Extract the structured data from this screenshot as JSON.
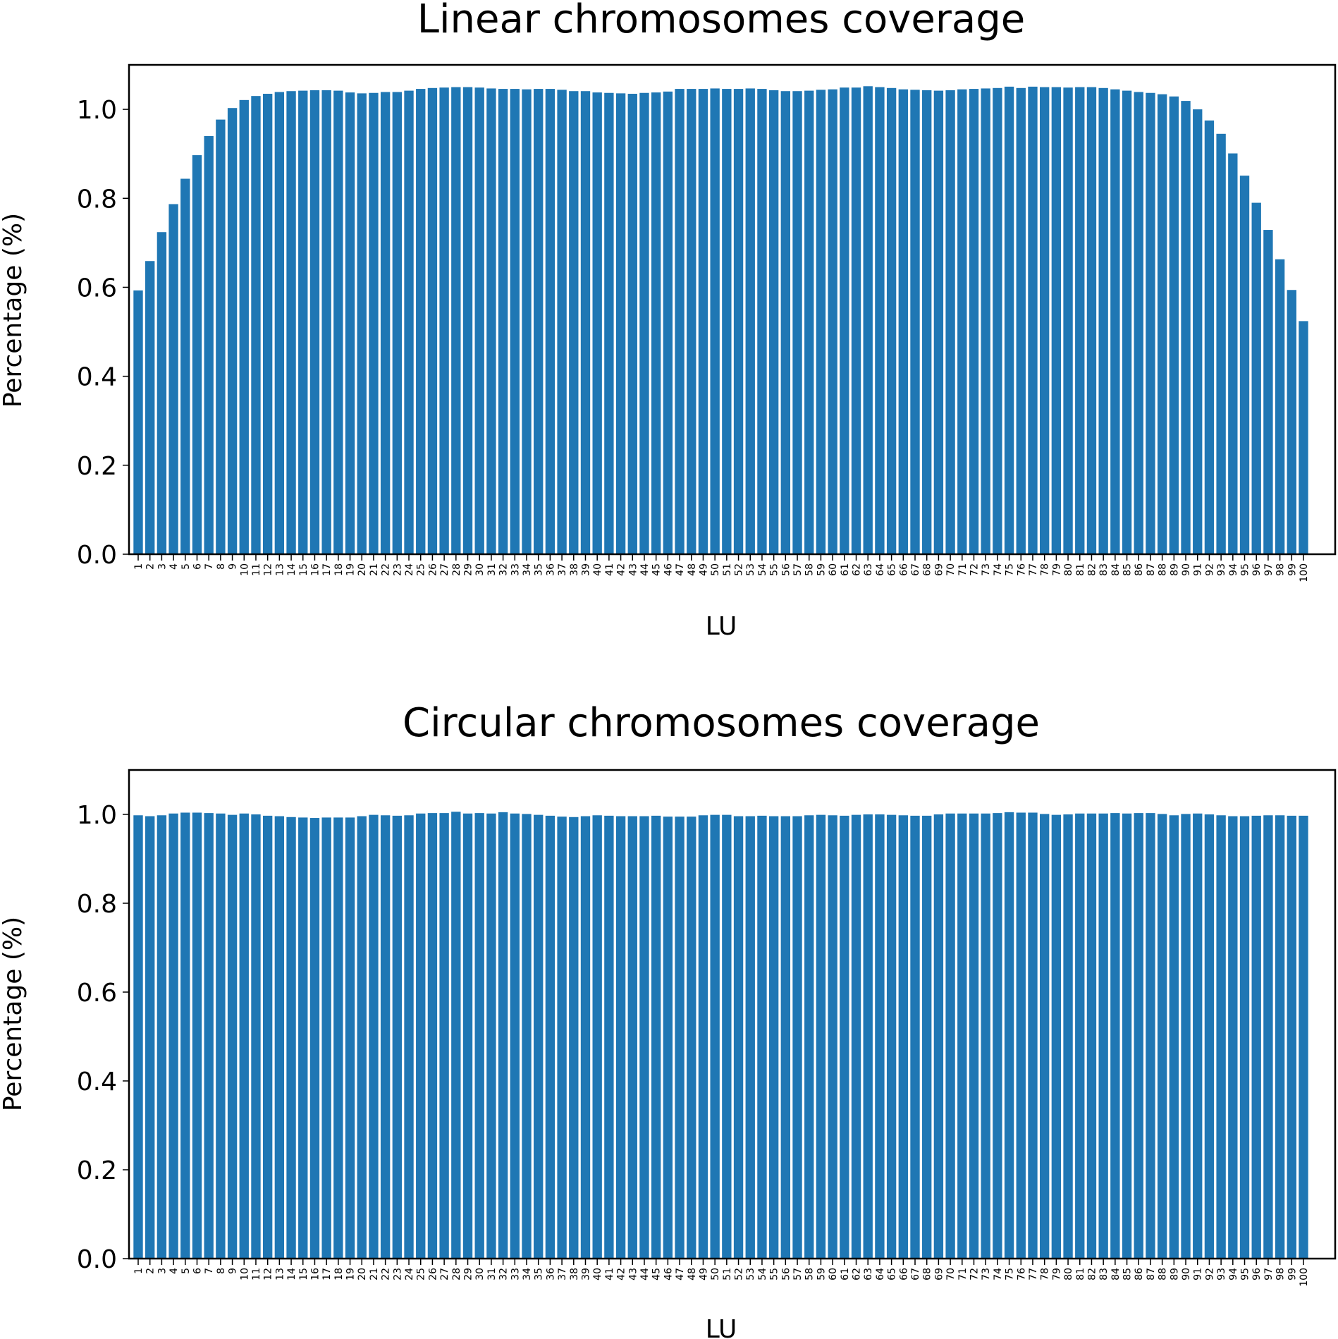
{
  "chart_data": [
    {
      "type": "bar",
      "title": "Linear chromosomes coverage",
      "xlabel": "LU",
      "ylabel": "Percentage (%)",
      "ylim": [
        0,
        1.1
      ],
      "yticks": [
        "0.0",
        "0.2",
        "0.4",
        "0.6",
        "0.8",
        "1.0"
      ],
      "grid": false,
      "bar_color": "#1f77b4",
      "categories": [
        "1",
        "2",
        "3",
        "4",
        "5",
        "6",
        "7",
        "8",
        "9",
        "10",
        "11",
        "12",
        "13",
        "14",
        "15",
        "16",
        "17",
        "18",
        "19",
        "20",
        "21",
        "22",
        "23",
        "24",
        "25",
        "26",
        "27",
        "28",
        "29",
        "30",
        "31",
        "32",
        "33",
        "34",
        "35",
        "36",
        "37",
        "38",
        "39",
        "40",
        "41",
        "42",
        "43",
        "44",
        "45",
        "46",
        "47",
        "48",
        "49",
        "50",
        "51",
        "52",
        "53",
        "54",
        "55",
        "56",
        "57",
        "58",
        "59",
        "60",
        "61",
        "62",
        "63",
        "64",
        "65",
        "66",
        "67",
        "68",
        "69",
        "70",
        "71",
        "72",
        "73",
        "74",
        "75",
        "76",
        "77",
        "78",
        "79",
        "80",
        "81",
        "82",
        "83",
        "84",
        "85",
        "86",
        "87",
        "88",
        "89",
        "90",
        "91",
        "92",
        "93",
        "94",
        "95",
        "96",
        "97",
        "98",
        "99",
        "100"
      ],
      "values": [
        0.593,
        0.659,
        0.724,
        0.787,
        0.844,
        0.897,
        0.94,
        0.977,
        1.003,
        1.021,
        1.03,
        1.035,
        1.039,
        1.041,
        1.042,
        1.043,
        1.043,
        1.042,
        1.038,
        1.036,
        1.037,
        1.039,
        1.039,
        1.042,
        1.046,
        1.048,
        1.049,
        1.05,
        1.05,
        1.049,
        1.047,
        1.046,
        1.046,
        1.045,
        1.046,
        1.046,
        1.044,
        1.041,
        1.041,
        1.038,
        1.037,
        1.036,
        1.035,
        1.037,
        1.038,
        1.04,
        1.046,
        1.046,
        1.046,
        1.047,
        1.046,
        1.046,
        1.047,
        1.046,
        1.043,
        1.041,
        1.041,
        1.042,
        1.044,
        1.045,
        1.049,
        1.049,
        1.052,
        1.05,
        1.048,
        1.045,
        1.044,
        1.043,
        1.042,
        1.043,
        1.045,
        1.046,
        1.047,
        1.048,
        1.051,
        1.048,
        1.051,
        1.05,
        1.05,
        1.049,
        1.05,
        1.05,
        1.048,
        1.045,
        1.042,
        1.039,
        1.037,
        1.034,
        1.029,
        1.019,
        1.0,
        0.975,
        0.945,
        0.901,
        0.851,
        0.79,
        0.729,
        0.663,
        0.594,
        0.524
      ]
    },
    {
      "type": "bar",
      "title": "Circular chromosomes coverage",
      "xlabel": "LU",
      "ylabel": "Percentage (%)",
      "ylim": [
        0,
        1.1
      ],
      "yticks": [
        "0.0",
        "0.2",
        "0.4",
        "0.6",
        "0.8",
        "1.0"
      ],
      "grid": false,
      "bar_color": "#1f77b4",
      "categories": [
        "1",
        "2",
        "3",
        "4",
        "5",
        "6",
        "7",
        "8",
        "9",
        "10",
        "11",
        "12",
        "13",
        "14",
        "15",
        "16",
        "17",
        "18",
        "19",
        "20",
        "21",
        "22",
        "23",
        "24",
        "25",
        "26",
        "27",
        "28",
        "29",
        "30",
        "31",
        "32",
        "33",
        "34",
        "35",
        "36",
        "37",
        "38",
        "39",
        "40",
        "41",
        "42",
        "43",
        "44",
        "45",
        "46",
        "47",
        "48",
        "49",
        "50",
        "51",
        "52",
        "53",
        "54",
        "55",
        "56",
        "57",
        "58",
        "59",
        "60",
        "61",
        "62",
        "63",
        "64",
        "65",
        "66",
        "67",
        "68",
        "69",
        "70",
        "71",
        "72",
        "73",
        "74",
        "75",
        "76",
        "77",
        "78",
        "79",
        "80",
        "81",
        "82",
        "83",
        "84",
        "85",
        "86",
        "87",
        "88",
        "89",
        "90",
        "91",
        "92",
        "93",
        "94",
        "95",
        "96",
        "97",
        "98",
        "99",
        "100"
      ],
      "values": [
        0.998,
        0.996,
        0.998,
        1.002,
        1.004,
        1.004,
        1.003,
        1.002,
        0.999,
        1.002,
        1.0,
        0.997,
        0.996,
        0.994,
        0.993,
        0.992,
        0.993,
        0.993,
        0.993,
        0.996,
        0.999,
        0.998,
        0.997,
        0.998,
        1.002,
        1.003,
        1.003,
        1.006,
        1.002,
        1.003,
        1.002,
        1.005,
        1.002,
        1.001,
        0.999,
        0.997,
        0.995,
        0.994,
        0.996,
        0.998,
        0.997,
        0.996,
        0.996,
        0.996,
        0.997,
        0.995,
        0.995,
        0.995,
        0.998,
        0.999,
        0.999,
        0.996,
        0.996,
        0.997,
        0.996,
        0.996,
        0.996,
        0.998,
        0.999,
        0.998,
        0.997,
        0.999,
        1.0,
        1.0,
        0.999,
        0.998,
        0.997,
        0.997,
        1.0,
        1.002,
        1.002,
        1.002,
        1.002,
        1.003,
        1.005,
        1.004,
        1.004,
        1.001,
        0.999,
        1.0,
        1.002,
        1.002,
        1.002,
        1.003,
        1.002,
        1.003,
        1.003,
        1.001,
        0.998,
        1.001,
        1.002,
        1.0,
        0.998,
        0.996,
        0.996,
        0.997,
        0.998,
        0.998,
        0.997,
        0.997
      ]
    }
  ]
}
